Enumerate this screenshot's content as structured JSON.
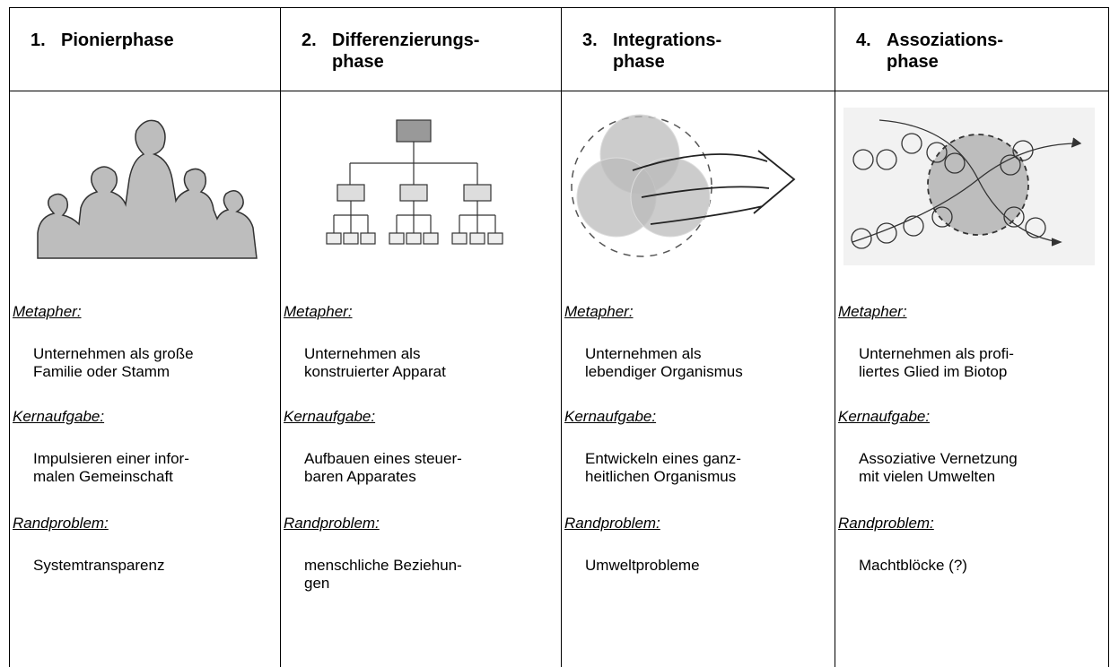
{
  "columns": [
    {
      "number": "1.",
      "title": "Pionierphase",
      "metaphor_label": "Metapher:",
      "metaphor": "Unternehmen als große\nFamilie oder Stamm",
      "task_label": "Kernaufgabe:",
      "task": "Impulsieren einer infor-\nmalen Gemeinschaft",
      "problem_label": "Randproblem:",
      "problem": "Systemtransparenz"
    },
    {
      "number": "2.",
      "title": "Differenzierungs-\nphase",
      "metaphor_label": "Metapher:",
      "metaphor": "Unternehmen als\nkonstruierter Apparat",
      "task_label": "Kernaufgabe:",
      "task": "Aufbauen eines steuer-\nbaren Apparates",
      "problem_label": "Randproblem:",
      "problem": "menschliche Beziehun-\ngen"
    },
    {
      "number": "3.",
      "title": "Integrations-\nphase",
      "metaphor_label": "Metapher:",
      "metaphor": "Unternehmen als\nlebendiger Organismus",
      "task_label": "Kernaufgabe:",
      "task": "Entwickeln eines ganz-\nheitlichen Organismus",
      "problem_label": "Randproblem:",
      "problem": "Umweltprobleme"
    },
    {
      "number": "4.",
      "title": "Assoziations-\nphase",
      "metaphor_label": "Metapher:",
      "metaphor": "Unternehmen als profi-\nliertes Glied im Biotop",
      "task_label": "Kernaufgabe:",
      "task": "Assoziative Vernetzung\nmit vielen Umwelten",
      "problem_label": "Randproblem:",
      "problem": "Machtblöcke (?)"
    }
  ]
}
